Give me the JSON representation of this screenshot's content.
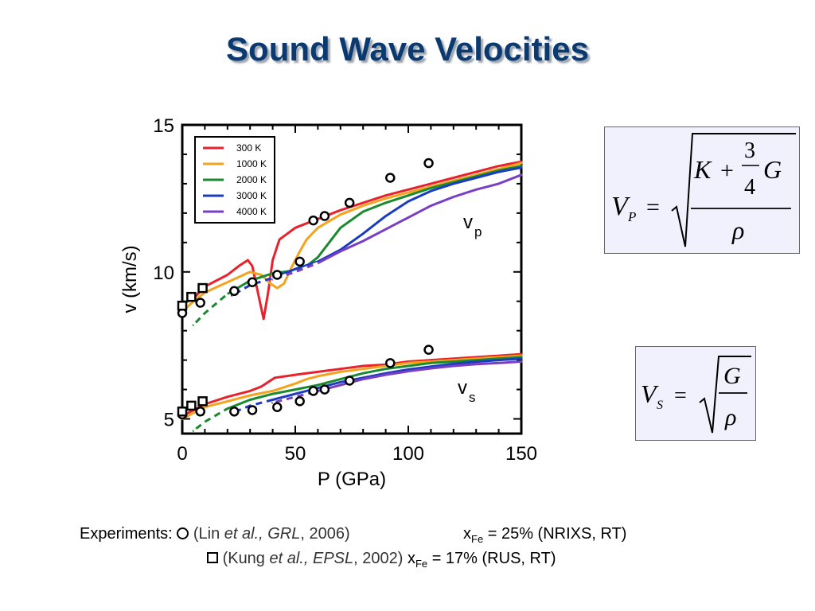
{
  "title": "Sound Wave Velocities",
  "chart_data": {
    "type": "line",
    "xlabel": "P (GPa)",
    "ylabel": "v (km/s)",
    "xlim": [
      0,
      150
    ],
    "ylim": [
      4.5,
      15
    ],
    "xticks": [
      "0",
      "50",
      "100",
      "150"
    ],
    "yticks": [
      "5",
      "10",
      "15"
    ],
    "grid": false,
    "legend_position": "top-left",
    "annotations": [
      {
        "text": "v",
        "sub": "p"
      },
      {
        "text": "v",
        "sub": "s"
      }
    ],
    "series": [
      {
        "name": "300 K",
        "color": "#e8222c",
        "vp": [
          [
            0,
            8.9
          ],
          [
            5,
            9.1
          ],
          [
            10,
            9.5
          ],
          [
            20,
            9.9
          ],
          [
            25,
            10.2
          ],
          [
            29,
            10.4
          ],
          [
            31,
            10.2
          ],
          [
            34,
            9.1
          ],
          [
            36,
            8.4
          ],
          [
            38,
            9.3
          ],
          [
            40,
            10.4
          ],
          [
            43,
            11.1
          ],
          [
            50,
            11.5
          ],
          [
            60,
            11.8
          ],
          [
            70,
            12.1
          ],
          [
            80,
            12.35
          ],
          [
            90,
            12.6
          ],
          [
            100,
            12.8
          ],
          [
            110,
            13
          ],
          [
            120,
            13.2
          ],
          [
            130,
            13.4
          ],
          [
            140,
            13.6
          ],
          [
            150,
            13.75
          ]
        ],
        "vs": [
          [
            0,
            5.1
          ],
          [
            5,
            5.3
          ],
          [
            10,
            5.5
          ],
          [
            20,
            5.75
          ],
          [
            30,
            5.95
          ],
          [
            35,
            6.1
          ],
          [
            38,
            6.25
          ],
          [
            41,
            6.4
          ],
          [
            50,
            6.5
          ],
          [
            60,
            6.6
          ],
          [
            70,
            6.7
          ],
          [
            80,
            6.8
          ],
          [
            90,
            6.85
          ],
          [
            100,
            6.95
          ],
          [
            110,
            7.0
          ],
          [
            120,
            7.05
          ],
          [
            130,
            7.1
          ],
          [
            140,
            7.15
          ],
          [
            150,
            7.2
          ]
        ]
      },
      {
        "name": "1000 K",
        "color": "#f4a31c",
        "vp": [
          [
            0,
            8.65
          ],
          [
            5,
            9
          ],
          [
            10,
            9.3
          ],
          [
            20,
            9.65
          ],
          [
            30,
            10
          ],
          [
            35,
            9.9
          ],
          [
            39,
            9.6
          ],
          [
            42,
            9.45
          ],
          [
            45,
            9.6
          ],
          [
            48,
            10.1
          ],
          [
            52,
            10.7
          ],
          [
            55,
            11.1
          ],
          [
            60,
            11.5
          ],
          [
            70,
            11.95
          ],
          [
            80,
            12.25
          ],
          [
            90,
            12.5
          ],
          [
            100,
            12.7
          ],
          [
            110,
            12.9
          ],
          [
            120,
            13.1
          ],
          [
            130,
            13.3
          ],
          [
            140,
            13.5
          ],
          [
            150,
            13.7
          ]
        ],
        "vs": [
          [
            0,
            5.0
          ],
          [
            5,
            5.2
          ],
          [
            10,
            5.4
          ],
          [
            20,
            5.6
          ],
          [
            30,
            5.8
          ],
          [
            40,
            5.95
          ],
          [
            50,
            6.2
          ],
          [
            55,
            6.35
          ],
          [
            60,
            6.45
          ],
          [
            70,
            6.6
          ],
          [
            80,
            6.7
          ],
          [
            90,
            6.8
          ],
          [
            100,
            6.9
          ],
          [
            110,
            6.95
          ],
          [
            120,
            7.0
          ],
          [
            130,
            7.05
          ],
          [
            140,
            7.1
          ],
          [
            150,
            7.15
          ]
        ]
      },
      {
        "name": "2000 K",
        "color": "#1b8a2e",
        "vp": [
          [
            5,
            8.2
          ],
          [
            10,
            8.6
          ],
          [
            20,
            9.25
          ],
          [
            30,
            9.7
          ],
          [
            40,
            9.95
          ],
          [
            45,
            10.0
          ],
          [
            50,
            10.05
          ],
          [
            55,
            10.2
          ],
          [
            60,
            10.5
          ],
          [
            65,
            11
          ],
          [
            70,
            11.5
          ],
          [
            80,
            12.05
          ],
          [
            90,
            12.35
          ],
          [
            100,
            12.6
          ],
          [
            110,
            12.85
          ],
          [
            120,
            13.05
          ],
          [
            130,
            13.25
          ],
          [
            140,
            13.45
          ],
          [
            150,
            13.6
          ]
        ],
        "vs": [
          [
            5,
            4.6
          ],
          [
            10,
            4.9
          ],
          [
            20,
            5.35
          ],
          [
            30,
            5.65
          ],
          [
            40,
            5.85
          ],
          [
            50,
            6.0
          ],
          [
            60,
            6.15
          ],
          [
            70,
            6.35
          ],
          [
            80,
            6.55
          ],
          [
            90,
            6.7
          ],
          [
            100,
            6.8
          ],
          [
            110,
            6.9
          ],
          [
            120,
            6.95
          ],
          [
            130,
            7.0
          ],
          [
            140,
            7.05
          ],
          [
            150,
            7.1
          ]
        ]
      },
      {
        "name": "3000 K",
        "color": "#1c3cbf",
        "vp": [
          [
            22,
            9.2
          ],
          [
            30,
            9.55
          ],
          [
            40,
            9.8
          ],
          [
            50,
            10.1
          ],
          [
            60,
            10.35
          ],
          [
            70,
            10.75
          ],
          [
            80,
            11.3
          ],
          [
            90,
            11.9
          ],
          [
            100,
            12.4
          ],
          [
            110,
            12.75
          ],
          [
            120,
            13.0
          ],
          [
            130,
            13.2
          ],
          [
            140,
            13.4
          ],
          [
            150,
            13.55
          ]
        ],
        "vs": [
          [
            22,
            5.2
          ],
          [
            30,
            5.45
          ],
          [
            40,
            5.65
          ],
          [
            50,
            5.85
          ],
          [
            60,
            6.05
          ],
          [
            70,
            6.25
          ],
          [
            80,
            6.4
          ],
          [
            90,
            6.55
          ],
          [
            100,
            6.68
          ],
          [
            110,
            6.78
          ],
          [
            120,
            6.87
          ],
          [
            130,
            6.94
          ],
          [
            140,
            7.0
          ],
          [
            150,
            7.05
          ]
        ]
      },
      {
        "name": "4000 K",
        "color": "#7a3ec2",
        "vp": [
          [
            40,
            9.75
          ],
          [
            50,
            10.0
          ],
          [
            60,
            10.3
          ],
          [
            70,
            10.7
          ],
          [
            80,
            11.05
          ],
          [
            90,
            11.45
          ],
          [
            100,
            11.85
          ],
          [
            110,
            12.25
          ],
          [
            120,
            12.55
          ],
          [
            130,
            12.8
          ],
          [
            140,
            13.0
          ],
          [
            150,
            13.3
          ]
        ],
        "vs": [
          [
            40,
            5.55
          ],
          [
            50,
            5.75
          ],
          [
            60,
            5.95
          ],
          [
            70,
            6.15
          ],
          [
            80,
            6.35
          ],
          [
            90,
            6.5
          ],
          [
            100,
            6.62
          ],
          [
            110,
            6.72
          ],
          [
            120,
            6.8
          ],
          [
            130,
            6.86
          ],
          [
            140,
            6.9
          ],
          [
            150,
            6.95
          ]
        ]
      }
    ],
    "experiments_lin_2006": {
      "marker": "circle",
      "vp": [
        [
          0,
          8.6
        ],
        [
          8,
          8.95
        ],
        [
          23,
          9.35
        ],
        [
          31,
          9.65
        ],
        [
          42,
          9.9
        ],
        [
          52,
          10.35
        ],
        [
          58,
          11.75
        ],
        [
          63,
          11.9
        ],
        [
          74,
          12.35
        ],
        [
          92,
          13.2
        ],
        [
          109,
          13.7
        ]
      ],
      "vs": [
        [
          0,
          5.15
        ],
        [
          8,
          5.25
        ],
        [
          23,
          5.25
        ],
        [
          31,
          5.3
        ],
        [
          42,
          5.4
        ],
        [
          52,
          5.6
        ],
        [
          58,
          5.95
        ],
        [
          63,
          6.0
        ],
        [
          74,
          6.3
        ],
        [
          92,
          6.9
        ],
        [
          109,
          7.35
        ]
      ]
    },
    "experiments_kung_2002": {
      "marker": "square",
      "vp": [
        [
          0,
          8.85
        ],
        [
          4,
          9.15
        ],
        [
          9,
          9.45
        ]
      ],
      "vs": [
        [
          0,
          5.25
        ],
        [
          4,
          5.45
        ],
        [
          9,
          5.6
        ]
      ]
    }
  },
  "formulas": {
    "vp": {
      "lhs": "V",
      "lhs_sub": "P",
      "eq": "=",
      "num_var1": "K",
      "plus": "+",
      "frac_num": "3",
      "frac_den": "4",
      "num_var2": "G",
      "den": "ρ"
    },
    "vs": {
      "lhs": "V",
      "lhs_sub": "S",
      "eq": "=",
      "num": "G",
      "den": "ρ"
    }
  },
  "experiments": {
    "label": "Experiments:",
    "row1": {
      "open": "(Lin ",
      "etal": "et al.,",
      "journal": "GRL",
      "year": ", 2006)",
      "x": "x",
      "x_sub": "Fe",
      "value": " = 25% (NRIXS, RT)"
    },
    "row2": {
      "open": "(Kung ",
      "etal": "et al.,",
      "journal": "EPSL",
      "year": ", 2002)",
      "x": "x",
      "x_sub": "Fe",
      "value": " = 17% (RUS, RT)"
    }
  }
}
